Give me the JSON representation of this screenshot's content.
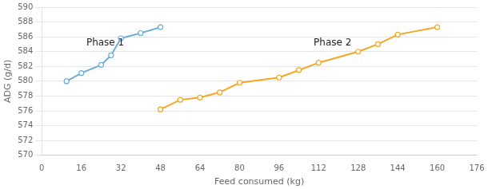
{
  "chart_data": {
    "type": "line",
    "xlabel": "Feed consumed (kg)",
    "ylabel": "ADG (g/d)",
    "series": [
      {
        "color": "#6baed6",
        "x": [
          10,
          16,
          24,
          28,
          32,
          40,
          48
        ],
        "values": [
          580.0,
          581.1,
          582.2,
          583.5,
          585.8,
          586.5,
          587.3
        ]
      },
      {
        "color": "#f5a623",
        "x": [
          48,
          56,
          64,
          72,
          80,
          96,
          104,
          112,
          128,
          136,
          144,
          160
        ],
        "values": [
          576.2,
          577.5,
          577.8,
          578.5,
          579.8,
          580.5,
          581.5,
          582.5,
          584.0,
          585.0,
          586.3,
          587.3
        ]
      }
    ],
    "xlim": [
      0,
      176
    ],
    "ylim": [
      570,
      590
    ],
    "xticks": [
      0,
      16,
      32,
      48,
      64,
      80,
      96,
      112,
      128,
      144,
      160,
      176
    ],
    "yticks": [
      570,
      572,
      574,
      576,
      578,
      580,
      582,
      584,
      586,
      588,
      590
    ],
    "grid": "y",
    "marker": "circle",
    "annotations": [
      {
        "text": "Phase 1",
        "x": 18,
        "y": 585.2
      },
      {
        "text": "Phase 2",
        "x": 110,
        "y": 585.2
      }
    ]
  }
}
